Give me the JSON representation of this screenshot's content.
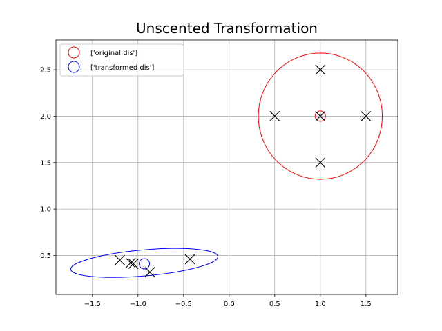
{
  "chart_data": {
    "type": "scatter",
    "title": "Unscented Transformation",
    "xlabel": "",
    "ylabel": "",
    "xlim": [
      -1.9,
      1.85
    ],
    "ylim": [
      0.08,
      2.82
    ],
    "xticks": [
      -1.5,
      -1.0,
      -0.5,
      0.0,
      0.5,
      1.0,
      1.5
    ],
    "xtick_labels": [
      "−1.5",
      "−1.0",
      "−0.5",
      "0.0",
      "0.5",
      "1.0",
      "1.5"
    ],
    "yticks": [
      0.5,
      1.0,
      1.5,
      2.0,
      2.5
    ],
    "ytick_labels": [
      "0.5",
      "1.0",
      "1.5",
      "2.0",
      "2.5"
    ],
    "grid": true,
    "legend": {
      "placement": "upper-left",
      "entries": [
        {
          "label": "['original dis']",
          "color": "#ff0000",
          "marker": "circle-open"
        },
        {
          "label": "['transformed dis']",
          "color": "#0000ff",
          "marker": "circle-open"
        }
      ]
    },
    "series": [
      {
        "name": "['original dis']",
        "color": "#ff0000",
        "mean": [
          1.0,
          2.0
        ],
        "ellipse": {
          "center": [
            1.0,
            2.0
          ],
          "rx": 0.68,
          "ry": 0.68,
          "angle_deg": 0
        }
      },
      {
        "name": "['transformed dis']",
        "color": "#0000ff",
        "mean": [
          -0.93,
          0.41
        ],
        "ellipse": {
          "center": [
            -0.93,
            0.42
          ],
          "rx": 0.81,
          "ry": 0.14,
          "angle_deg": -5
        }
      }
    ],
    "sigma_points": {
      "color": "#000000",
      "marker": "x",
      "original": [
        [
          1.0,
          2.0
        ],
        [
          1.0,
          2.5
        ],
        [
          0.5,
          2.0
        ],
        [
          1.5,
          2.0
        ],
        [
          1.0,
          1.5
        ]
      ],
      "transformed": [
        [
          -1.2,
          0.45
        ],
        [
          -1.08,
          0.42
        ],
        [
          -1.05,
          0.41
        ],
        [
          -0.87,
          0.32
        ],
        [
          -0.43,
          0.46
        ]
      ]
    }
  }
}
